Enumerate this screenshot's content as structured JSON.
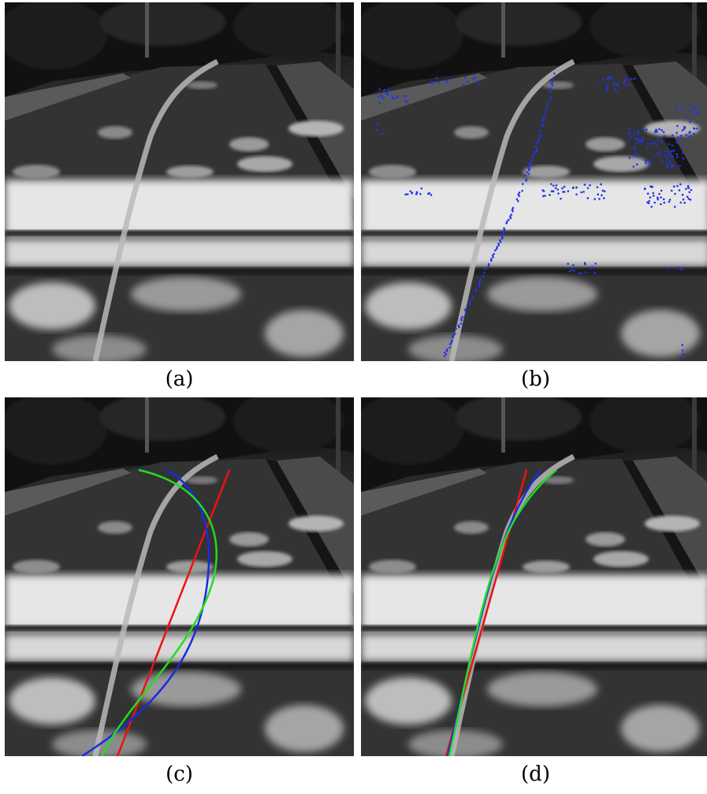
{
  "captions": {
    "a": "(a)",
    "b": "(b)",
    "c": "(c)",
    "d": "(d)"
  },
  "colors": {
    "points": "#2233ee",
    "fit_red": "#ee1111",
    "fit_blue": "#1a2be0",
    "fit_green": "#22dd22"
  }
}
